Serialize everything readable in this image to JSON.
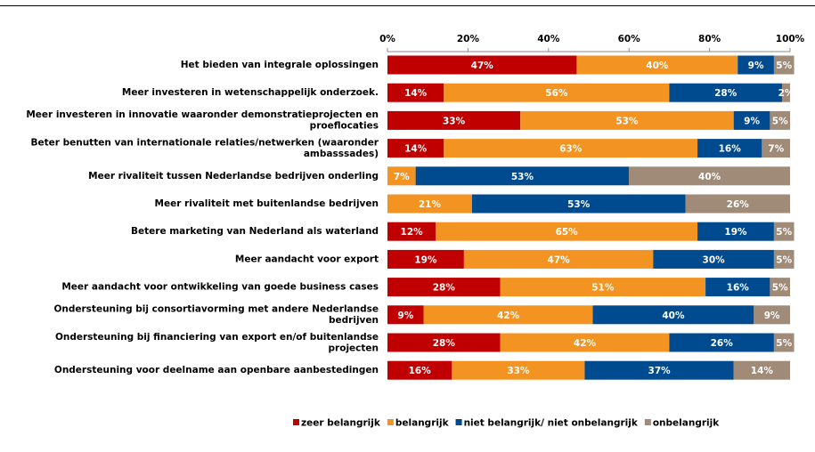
{
  "chart_data": {
    "type": "stacked-bar-horizontal",
    "categories": [
      "Het bieden van integrale oplossingen",
      "Meer investeren in wetenschappelijk onderzoek.",
      "Meer investeren in innovatie waaronder demonstratieprojecten en proeflocaties",
      "Beter benutten van internationale relaties/netwerken (waaronder ambasssades)",
      "Meer rivaliteit tussen Nederlandse bedrijven onderling",
      "Meer rivaliteit met buitenlandse bedrijven",
      "Betere marketing van Nederland als waterland",
      "Meer aandacht voor export",
      "Meer aandacht voor ontwikkeling van goede business cases",
      "Ondersteuning bij consortiavorming met andere Nederlandse bedrijven",
      "Ondersteuning bij financiering van export en/of buitenlandse projecten",
      "Ondersteuning voor deelname aan openbare aanbestedingen"
    ],
    "series": [
      {
        "name": "zeer belangrijk",
        "color": "#c00000",
        "values": [
          47,
          14,
          33,
          14,
          0,
          0,
          12,
          19,
          28,
          9,
          28,
          16
        ],
        "value_labels": [
          "47%",
          "14%",
          "33%",
          "14%",
          "0%",
          "0%",
          "12%",
          "19%",
          "28%",
          "9%",
          "28%",
          "16%"
        ]
      },
      {
        "name": "belangrijk",
        "color": "#f39322",
        "values": [
          40,
          56,
          53,
          63,
          7,
          21,
          65,
          47,
          51,
          42,
          42,
          33
        ],
        "value_labels": [
          "40%",
          "56%",
          "53%",
          "63%",
          "7%",
          "21%",
          "65%",
          "47%",
          "51%",
          "42%",
          "42%",
          "33%"
        ]
      },
      {
        "name": "niet belangrijk/ niet onbelangrijk",
        "color": "#004a8f",
        "values": [
          9,
          28,
          9,
          16,
          53,
          53,
          19,
          30,
          16,
          40,
          26,
          37
        ],
        "value_labels": [
          "9%",
          "28%",
          "9%",
          "16%",
          "53%",
          "53%",
          "19%",
          "30%",
          "16%",
          "40%",
          "26%",
          "37%"
        ]
      },
      {
        "name": "onbelangrijk",
        "color": "#a08a78",
        "values": [
          5,
          2,
          5,
          7,
          40,
          26,
          5,
          5,
          5,
          9,
          5,
          14
        ],
        "value_labels": [
          "5%",
          "2%",
          "5%",
          "7%",
          "40%",
          "26%",
          "5%",
          "5%",
          "5%",
          "9%",
          "5%",
          "14%"
        ]
      }
    ],
    "xlim": [
      0,
      100
    ],
    "xticks": [
      {
        "value": 0,
        "label": "0%"
      },
      {
        "value": 20,
        "label": "20%"
      },
      {
        "value": 40,
        "label": "40%"
      },
      {
        "value": 60,
        "label": "60%"
      },
      {
        "value": 80,
        "label": "80%"
      },
      {
        "value": 100,
        "label": "100%"
      }
    ]
  }
}
